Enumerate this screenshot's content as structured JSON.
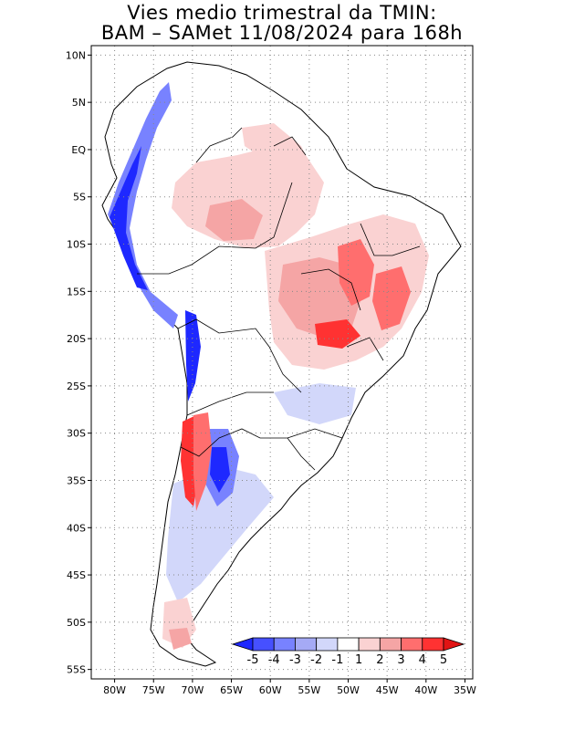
{
  "title": {
    "line1": "Vies medio trimestral da TMIN:",
    "line2": "BAM – SAMet 11/08/2024  para 168h"
  },
  "map": {
    "region": "South America",
    "lon_range": [
      -83,
      -34
    ],
    "lat_range": [
      -56,
      11
    ],
    "lat_ticks": [
      "10N",
      "5N",
      "EQ",
      "5S",
      "10S",
      "15S",
      "20S",
      "25S",
      "30S",
      "35S",
      "40S",
      "45S",
      "50S",
      "55S"
    ],
    "lon_ticks": [
      "80W",
      "75W",
      "70W",
      "65W",
      "60W",
      "55W",
      "50W",
      "45W",
      "40W",
      "35W"
    ],
    "grid": "dotted"
  },
  "colorbar": {
    "labels": [
      "-5",
      "-4",
      "-3",
      "-2",
      "-1",
      "1",
      "2",
      "3",
      "4",
      "5"
    ],
    "colors": [
      "#1e28ff",
      "#4650ff",
      "#7882ff",
      "#a5aaf5",
      "#d2d7fa",
      "#ffffff",
      "#fad2d2",
      "#f5a5a5",
      "#ff6e6e",
      "#ff3232",
      "#e11414"
    ]
  }
}
